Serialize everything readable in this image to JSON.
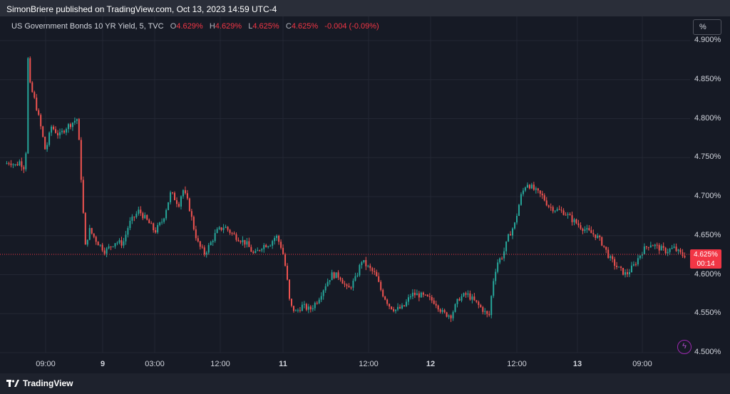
{
  "header": {
    "published": "SimonBriere published on TradingView.com, Oct 13, 2023 14:59 UTC-4"
  },
  "legend": {
    "symbol": "US Government Bonds 10 YR Yield, 5, TVC",
    "o_label": "O",
    "o_value": "4.629%",
    "h_label": "H",
    "h_value": "4.629%",
    "l_label": "L",
    "l_value": "4.625%",
    "c_label": "C",
    "c_value": "4.625%",
    "change": "-0.004 (-0.09%)"
  },
  "scale_button": "%",
  "price_badge": {
    "price": "4.625%",
    "countdown": "00:14"
  },
  "footer": {
    "brand": "TradingView"
  },
  "colors": {
    "up": "#26a69a",
    "down": "#ef5350",
    "accent": "#f23645",
    "background": "#161a25",
    "grid": "#232734"
  },
  "chart_data": {
    "type": "candlestick",
    "y_ticks": [
      "4.900%",
      "4.850%",
      "4.800%",
      "4.750%",
      "4.700%",
      "4.650%",
      "4.600%",
      "4.550%",
      "4.500%"
    ],
    "ylim": [
      4.5,
      4.9
    ],
    "x_ticks": [
      "09:00",
      "9",
      "03:00",
      "12:00",
      "11",
      "12:00",
      "12",
      "12:00",
      "13",
      "09:00"
    ],
    "bold_x_ticks": [
      "9",
      "11",
      "12",
      "13"
    ],
    "last_price": 4.625,
    "path": [
      [
        0,
        4.742
      ],
      [
        0.02,
        4.745
      ],
      [
        0.05,
        4.74
      ],
      [
        0.07,
        4.745
      ],
      [
        0.1,
        4.735
      ],
      [
        0.11,
        4.885
      ],
      [
        0.12,
        4.845
      ],
      [
        0.15,
        4.82
      ],
      [
        0.18,
        4.785
      ],
      [
        0.2,
        4.758
      ],
      [
        0.23,
        4.79
      ],
      [
        0.27,
        4.778
      ],
      [
        0.3,
        4.788
      ],
      [
        0.36,
        4.8
      ],
      [
        0.37,
        4.765
      ],
      [
        0.4,
        4.635
      ],
      [
        0.42,
        4.658
      ],
      [
        0.46,
        4.642
      ],
      [
        0.5,
        4.63
      ],
      [
        0.55,
        4.642
      ],
      [
        0.59,
        4.64
      ],
      [
        0.62,
        4.665
      ],
      [
        0.67,
        4.682
      ],
      [
        0.73,
        4.663
      ],
      [
        0.75,
        4.655
      ],
      [
        0.79,
        4.67
      ],
      [
        0.83,
        4.705
      ],
      [
        0.87,
        4.69
      ],
      [
        0.89,
        4.71
      ],
      [
        0.92,
        4.69
      ],
      [
        0.95,
        4.655
      ],
      [
        0.97,
        4.638
      ],
      [
        1.0,
        4.627
      ],
      [
        1.03,
        4.64
      ],
      [
        1.06,
        4.655
      ],
      [
        1.1,
        4.662
      ],
      [
        1.14,
        4.652
      ],
      [
        1.18,
        4.645
      ],
      [
        1.21,
        4.64
      ],
      [
        1.25,
        4.625
      ],
      [
        1.29,
        4.637
      ],
      [
        1.33,
        4.64
      ],
      [
        1.36,
        4.65
      ],
      [
        1.39,
        4.633
      ],
      [
        1.41,
        4.605
      ],
      [
        1.43,
        4.56
      ],
      [
        1.46,
        4.552
      ],
      [
        1.49,
        4.56
      ],
      [
        1.53,
        4.555
      ],
      [
        1.57,
        4.568
      ],
      [
        1.61,
        4.588
      ],
      [
        1.64,
        4.6
      ],
      [
        1.68,
        4.598
      ],
      [
        1.72,
        4.58
      ],
      [
        1.76,
        4.595
      ],
      [
        1.79,
        4.618
      ],
      [
        1.82,
        4.61
      ],
      [
        1.86,
        4.6
      ],
      [
        1.89,
        4.578
      ],
      [
        1.93,
        4.56
      ],
      [
        1.96,
        4.555
      ],
      [
        2.0,
        4.558
      ],
      [
        2.04,
        4.575
      ],
      [
        2.08,
        4.574
      ],
      [
        2.12,
        4.57
      ],
      [
        2.16,
        4.565
      ],
      [
        2.2,
        4.55
      ],
      [
        2.24,
        4.548
      ],
      [
        2.28,
        4.57
      ],
      [
        2.32,
        4.575
      ],
      [
        2.36,
        4.565
      ],
      [
        2.4,
        4.555
      ],
      [
        2.43,
        4.545
      ],
      [
        2.45,
        4.59
      ],
      [
        2.47,
        4.615
      ],
      [
        2.5,
        4.625
      ],
      [
        2.53,
        4.65
      ],
      [
        2.56,
        4.665
      ],
      [
        2.59,
        4.7
      ],
      [
        2.62,
        4.718
      ],
      [
        2.66,
        4.708
      ],
      [
        2.7,
        4.7
      ],
      [
        2.73,
        4.688
      ],
      [
        2.77,
        4.683
      ],
      [
        2.81,
        4.68
      ],
      [
        2.85,
        4.67
      ],
      [
        2.89,
        4.662
      ],
      [
        2.93,
        4.655
      ],
      [
        2.97,
        4.65
      ],
      [
        3.0,
        4.64
      ],
      [
        3.04,
        4.62
      ],
      [
        3.08,
        4.608
      ],
      [
        3.12,
        4.6
      ],
      [
        3.16,
        4.612
      ],
      [
        3.2,
        4.63
      ],
      [
        3.24,
        4.64
      ],
      [
        3.28,
        4.635
      ],
      [
        3.32,
        4.63
      ],
      [
        3.36,
        4.634
      ],
      [
        3.4,
        4.625
      ]
    ],
    "x_extent": [
      0,
      3.42
    ]
  }
}
